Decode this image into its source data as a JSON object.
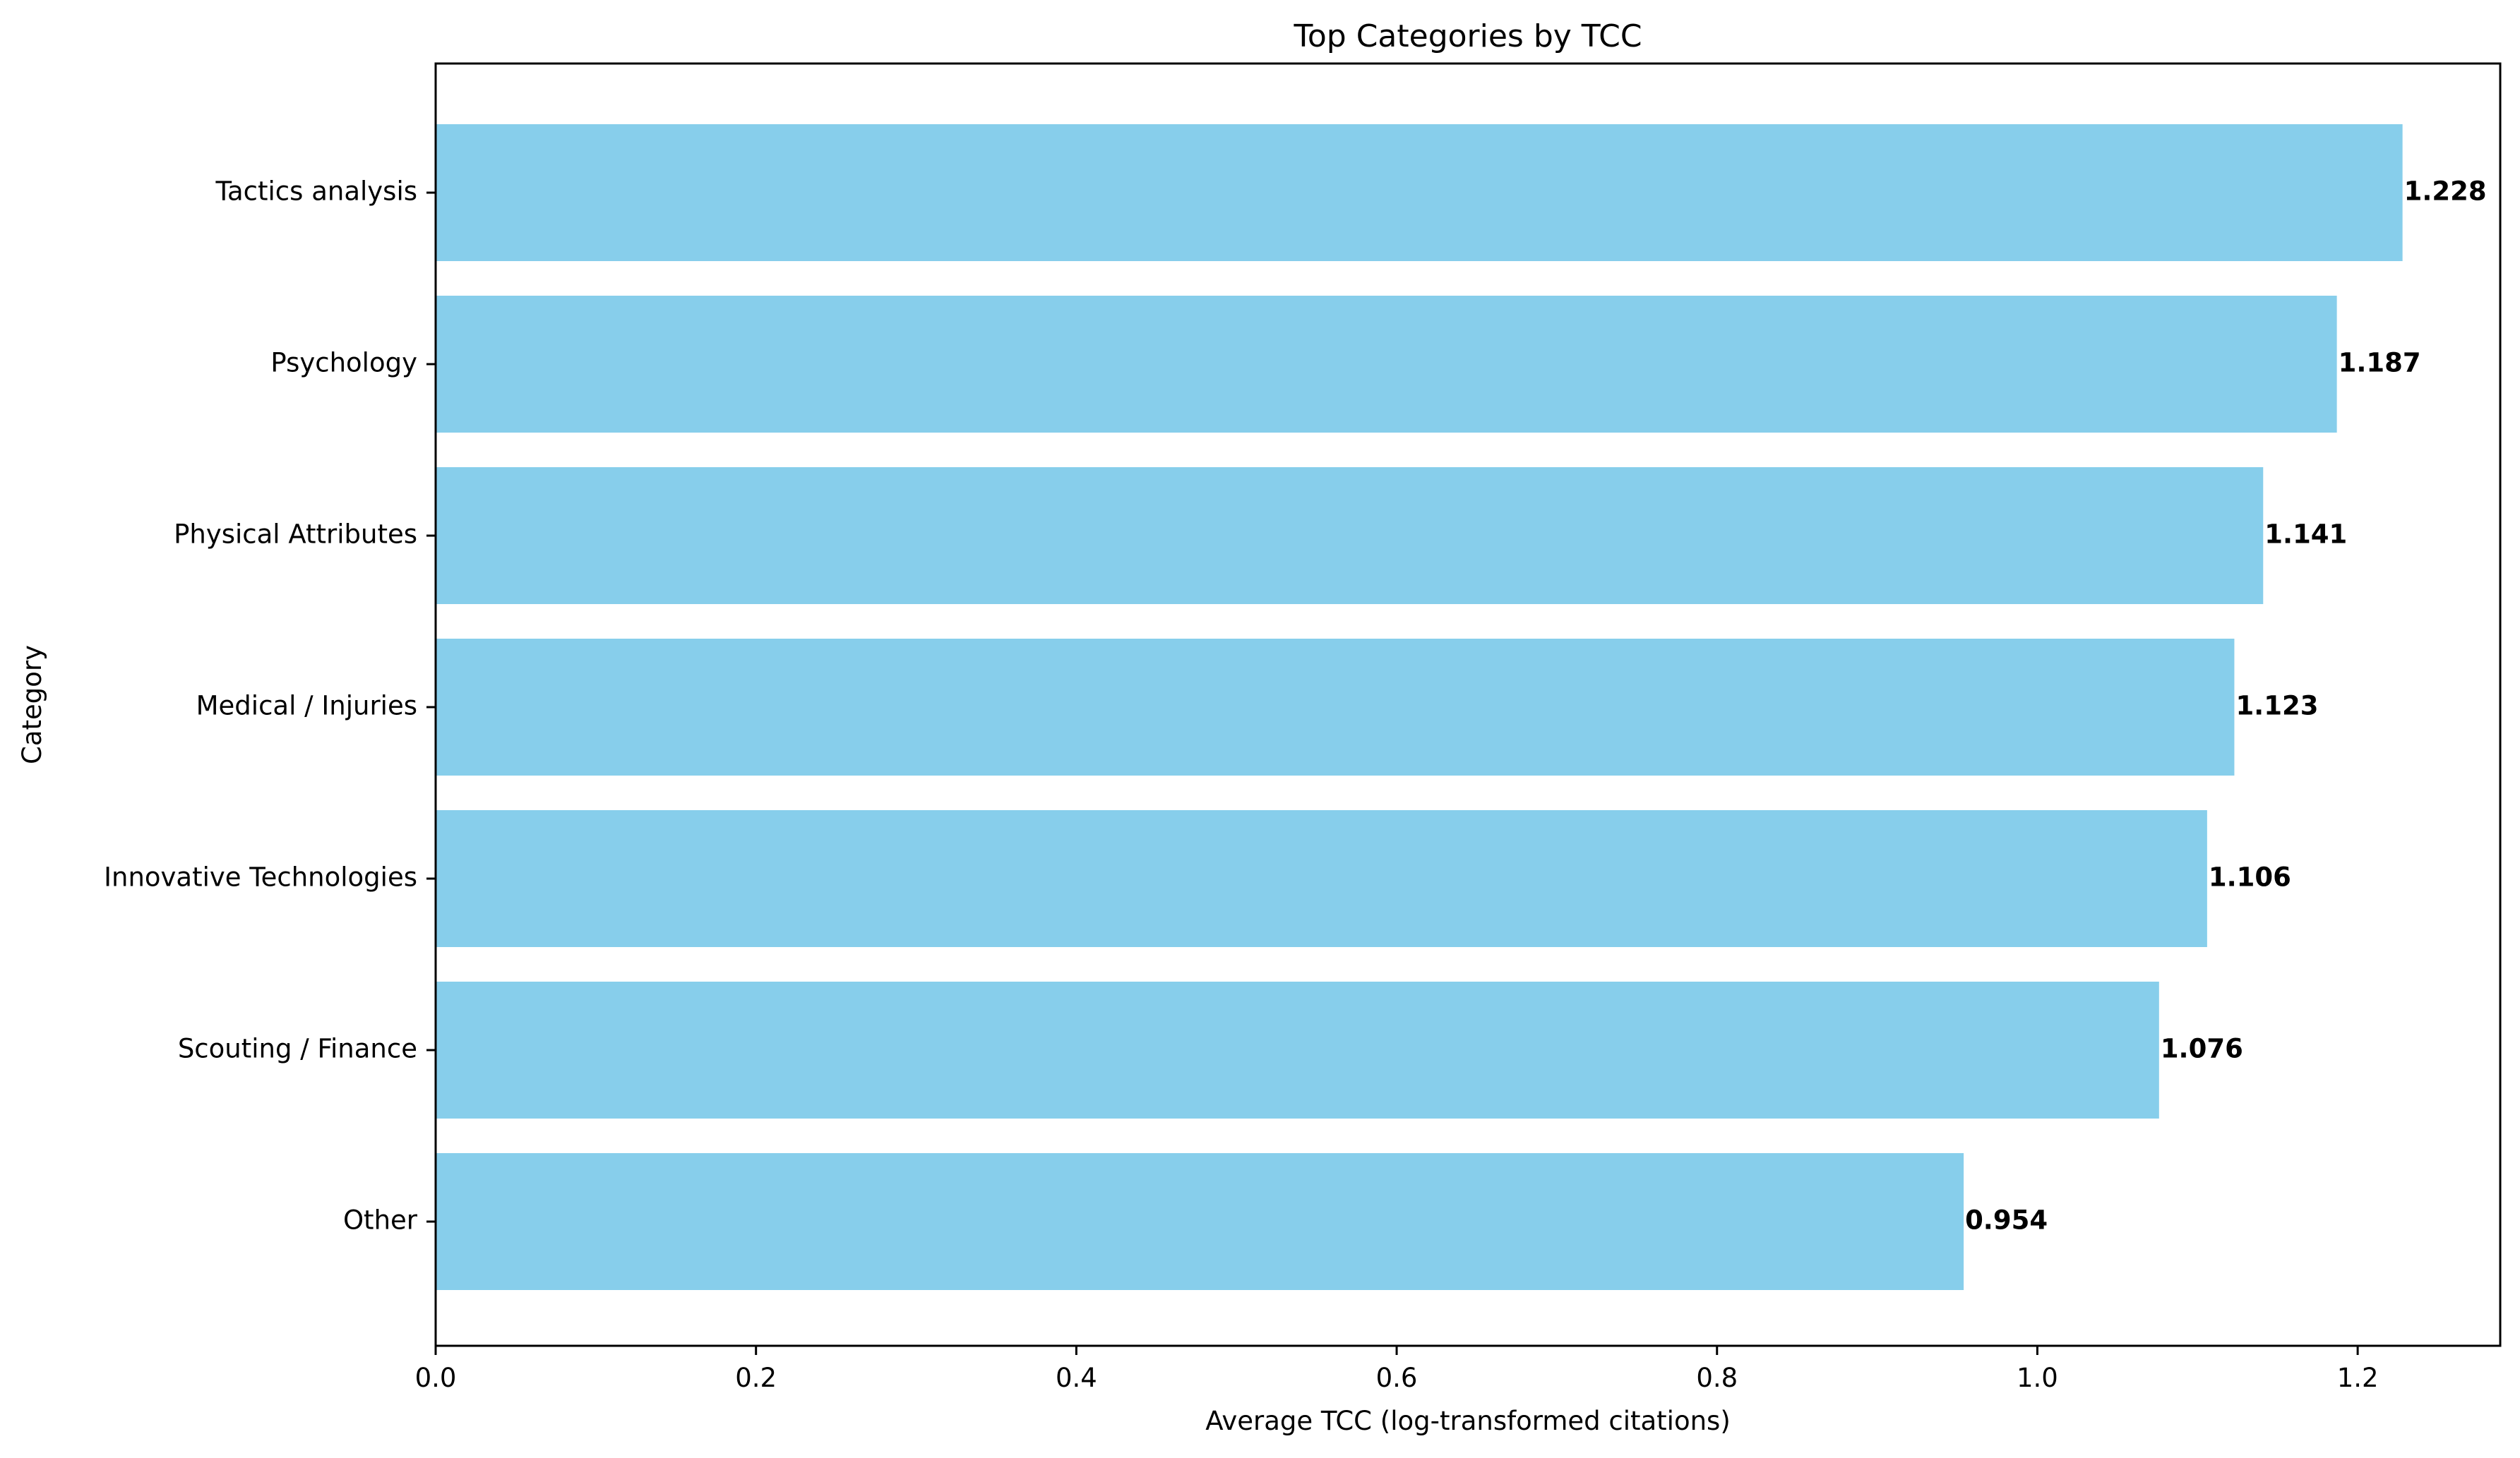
{
  "chart_data": {
    "type": "bar",
    "orientation": "horizontal",
    "title": "Top Categories by TCC",
    "xlabel": "Average TCC (log-transformed citations)",
    "ylabel": "Category",
    "xlim": [
      0,
      1.289
    ],
    "xticks": [
      "0.0",
      "0.2",
      "0.4",
      "0.6",
      "0.8",
      "1.0",
      "1.2"
    ],
    "categories": [
      "Tactics analysis",
      "Psychology",
      "Physical Attributes",
      "Medical / Injuries",
      "Innovative Technologies",
      "Scouting / Finance",
      "Other"
    ],
    "values": [
      1.228,
      1.187,
      1.141,
      1.123,
      1.106,
      1.076,
      0.954
    ],
    "value_labels": [
      "1.228",
      "1.187",
      "1.141",
      "1.123",
      "1.106",
      "1.076",
      "0.954"
    ],
    "bar_color": "#87CEEB",
    "grid": false,
    "legend": "none"
  }
}
